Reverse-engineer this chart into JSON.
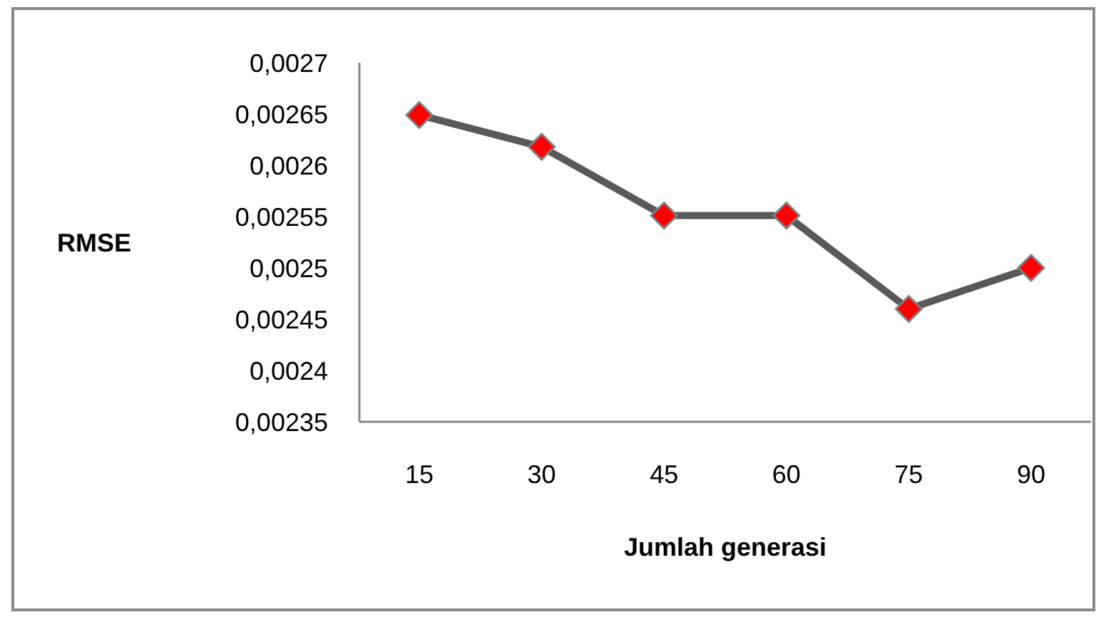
{
  "chart_data": {
    "type": "line",
    "xlabel": "Jumlah generasi",
    "ylabel": "RMSE",
    "categories": [
      "15",
      "30",
      "45",
      "60",
      "75",
      "90"
    ],
    "series": [
      {
        "color": "#595959",
        "colors": [
          "#ff0000",
          "#ff0000",
          "#ff0000",
          "#ff0000",
          "#ff0000",
          "#ff0000"
        ],
        "values": [
          0.002649,
          0.002618,
          0.002551,
          0.002551,
          0.00246,
          0.0025
        ]
      }
    ],
    "ylim": [
      0.00235,
      0.0027
    ],
    "yticks": [
      {
        "value": 0.00235,
        "label": "0,00235"
      },
      {
        "value": 0.0024,
        "label": "0,0024"
      },
      {
        "value": 0.00245,
        "label": "0,00245"
      },
      {
        "value": 0.0025,
        "label": "0,0025"
      },
      {
        "value": 0.00255,
        "label": "0,00255"
      },
      {
        "value": 0.0026,
        "label": "0,0026"
      },
      {
        "value": 0.00265,
        "label": "0,00265"
      },
      {
        "value": 0.0027,
        "label": "0,0027"
      }
    ],
    "grid": false,
    "legend": false,
    "marker": "diamond"
  }
}
